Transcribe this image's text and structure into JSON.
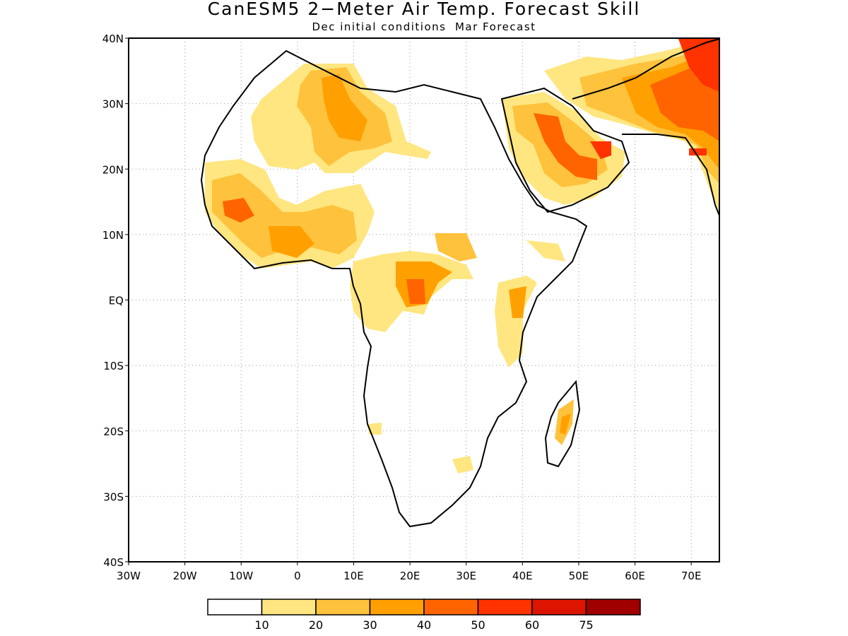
{
  "title": "CanESM5 2−Meter Air Temp. Forecast Skill",
  "subtitle": "Dec initial conditions  Mar Forecast",
  "map": {
    "lon_range": [
      -30,
      75
    ],
    "lat_range": [
      -40,
      40
    ],
    "lat_ticks": [
      "40N",
      "30N",
      "20N",
      "10N",
      "EQ",
      "10S",
      "20S",
      "30S",
      "40S"
    ],
    "lon_ticks": [
      "30W",
      "20W",
      "10W",
      "0",
      "10E",
      "20E",
      "30E",
      "40E",
      "50E",
      "60E",
      "70E"
    ],
    "grid": true,
    "land_fill": "#ffffff",
    "coastline_color": "#000000"
  },
  "colorbar": {
    "labels": [
      "10",
      "20",
      "30",
      "40",
      "50",
      "60",
      "75"
    ],
    "colors": [
      "#ffffff",
      "#ffe680",
      "#ffc23c",
      "#ffa000",
      "#ff6400",
      "#ff3200",
      "#dc1400",
      "#a00000"
    ]
  }
}
